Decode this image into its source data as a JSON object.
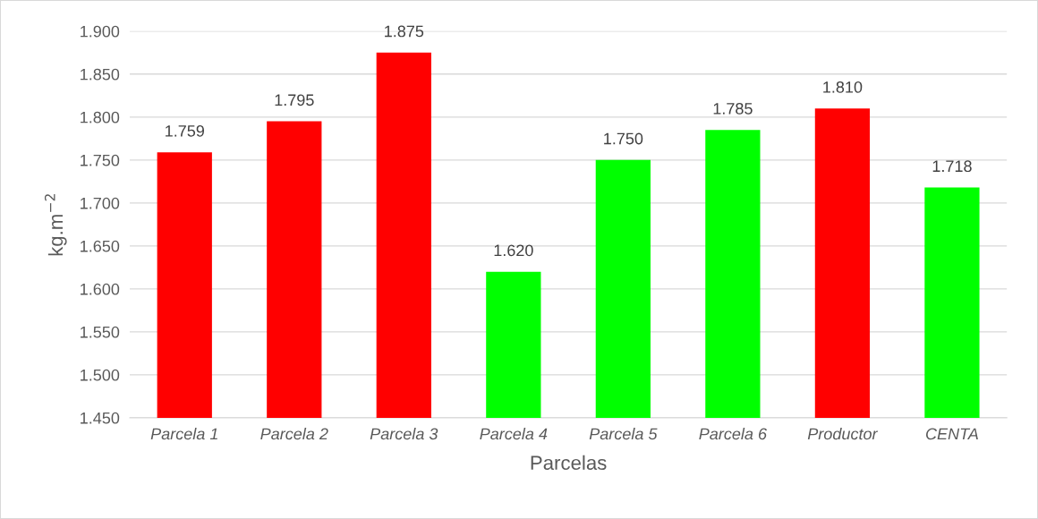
{
  "chart_data": {
    "type": "bar",
    "xlabel": "Parcelas",
    "ylabel": "kg.m$^{−2}$",
    "categories": [
      "Parcela 1",
      "Parcela 2",
      "Parcela 3",
      "Parcela 4",
      "Parcela 5",
      "Parcela 6",
      "Productor",
      "CENTA"
    ],
    "values": [
      1.759,
      1.795,
      1.875,
      1.62,
      1.75,
      1.785,
      1.81,
      1.718
    ],
    "value_labels": [
      "1.759",
      "1.795",
      "1.875",
      "1.620",
      "1.750",
      "1.785",
      "1.810",
      "1.718"
    ],
    "colors": [
      "#ff0000",
      "#ff0000",
      "#ff0000",
      "#00ff00",
      "#00ff00",
      "#00ff00",
      "#ff0000",
      "#00ff00"
    ],
    "ylim": [
      1.45,
      1.9
    ],
    "yticks": [
      {
        "value": 1.45,
        "label": "1.450"
      },
      {
        "value": 1.5,
        "label": "1.500"
      },
      {
        "value": 1.55,
        "label": "1.550"
      },
      {
        "value": 1.6,
        "label": "1.600"
      },
      {
        "value": 1.65,
        "label": "1.650"
      },
      {
        "value": 1.7,
        "label": "1.700"
      },
      {
        "value": 1.75,
        "label": "1.750"
      },
      {
        "value": 1.8,
        "label": "1.800"
      },
      {
        "value": 1.85,
        "label": "1.850"
      },
      {
        "value": 1.9,
        "label": "1.900"
      }
    ],
    "grid": "y",
    "legend": false
  }
}
